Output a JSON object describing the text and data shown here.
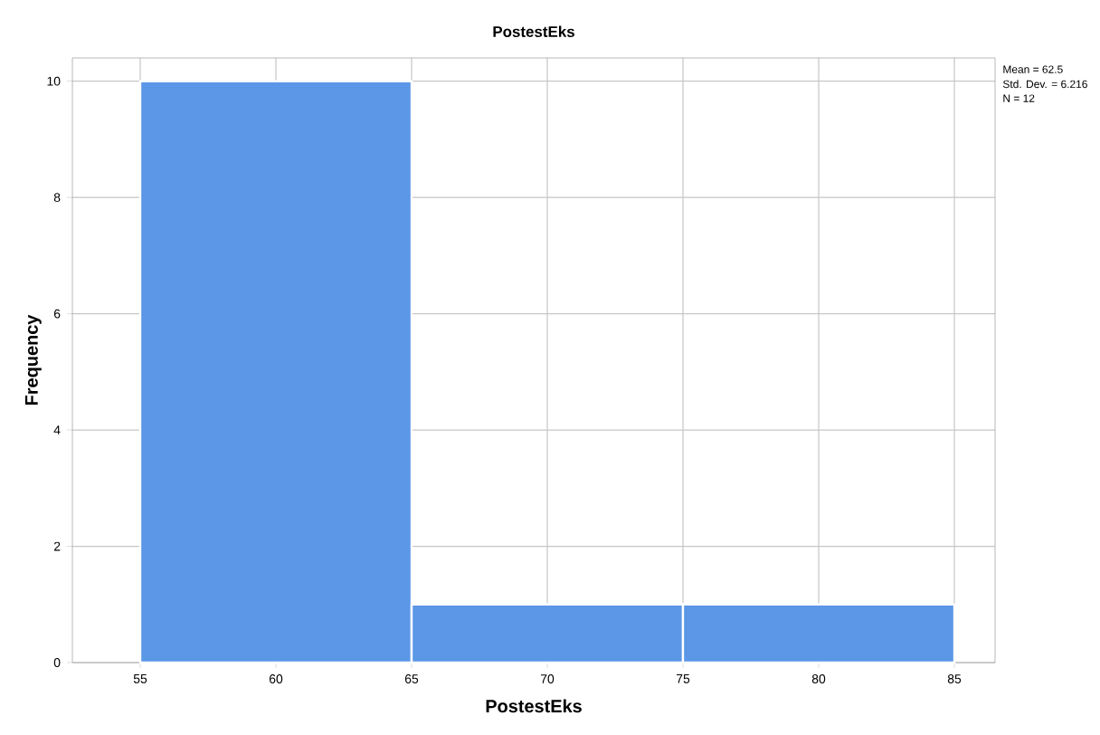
{
  "chart_data": {
    "type": "histogram",
    "title": "PostestEks",
    "xlabel": "PostestEks",
    "ylabel": "Frequency",
    "bins": [
      55,
      65,
      75,
      85
    ],
    "values": [
      10,
      1,
      1
    ],
    "color": "#5b97e6",
    "xlim": [
      52.5,
      86.5
    ],
    "ylim": [
      0,
      10.4
    ],
    "xticks": [
      55,
      60,
      65,
      70,
      75,
      80,
      85
    ],
    "yticks": [
      0,
      2,
      4,
      6,
      8,
      10
    ],
    "grid": true,
    "annotations": [
      "Mean = 62.5",
      "Std. Dev. = 6.216",
      "N = 12"
    ]
  }
}
